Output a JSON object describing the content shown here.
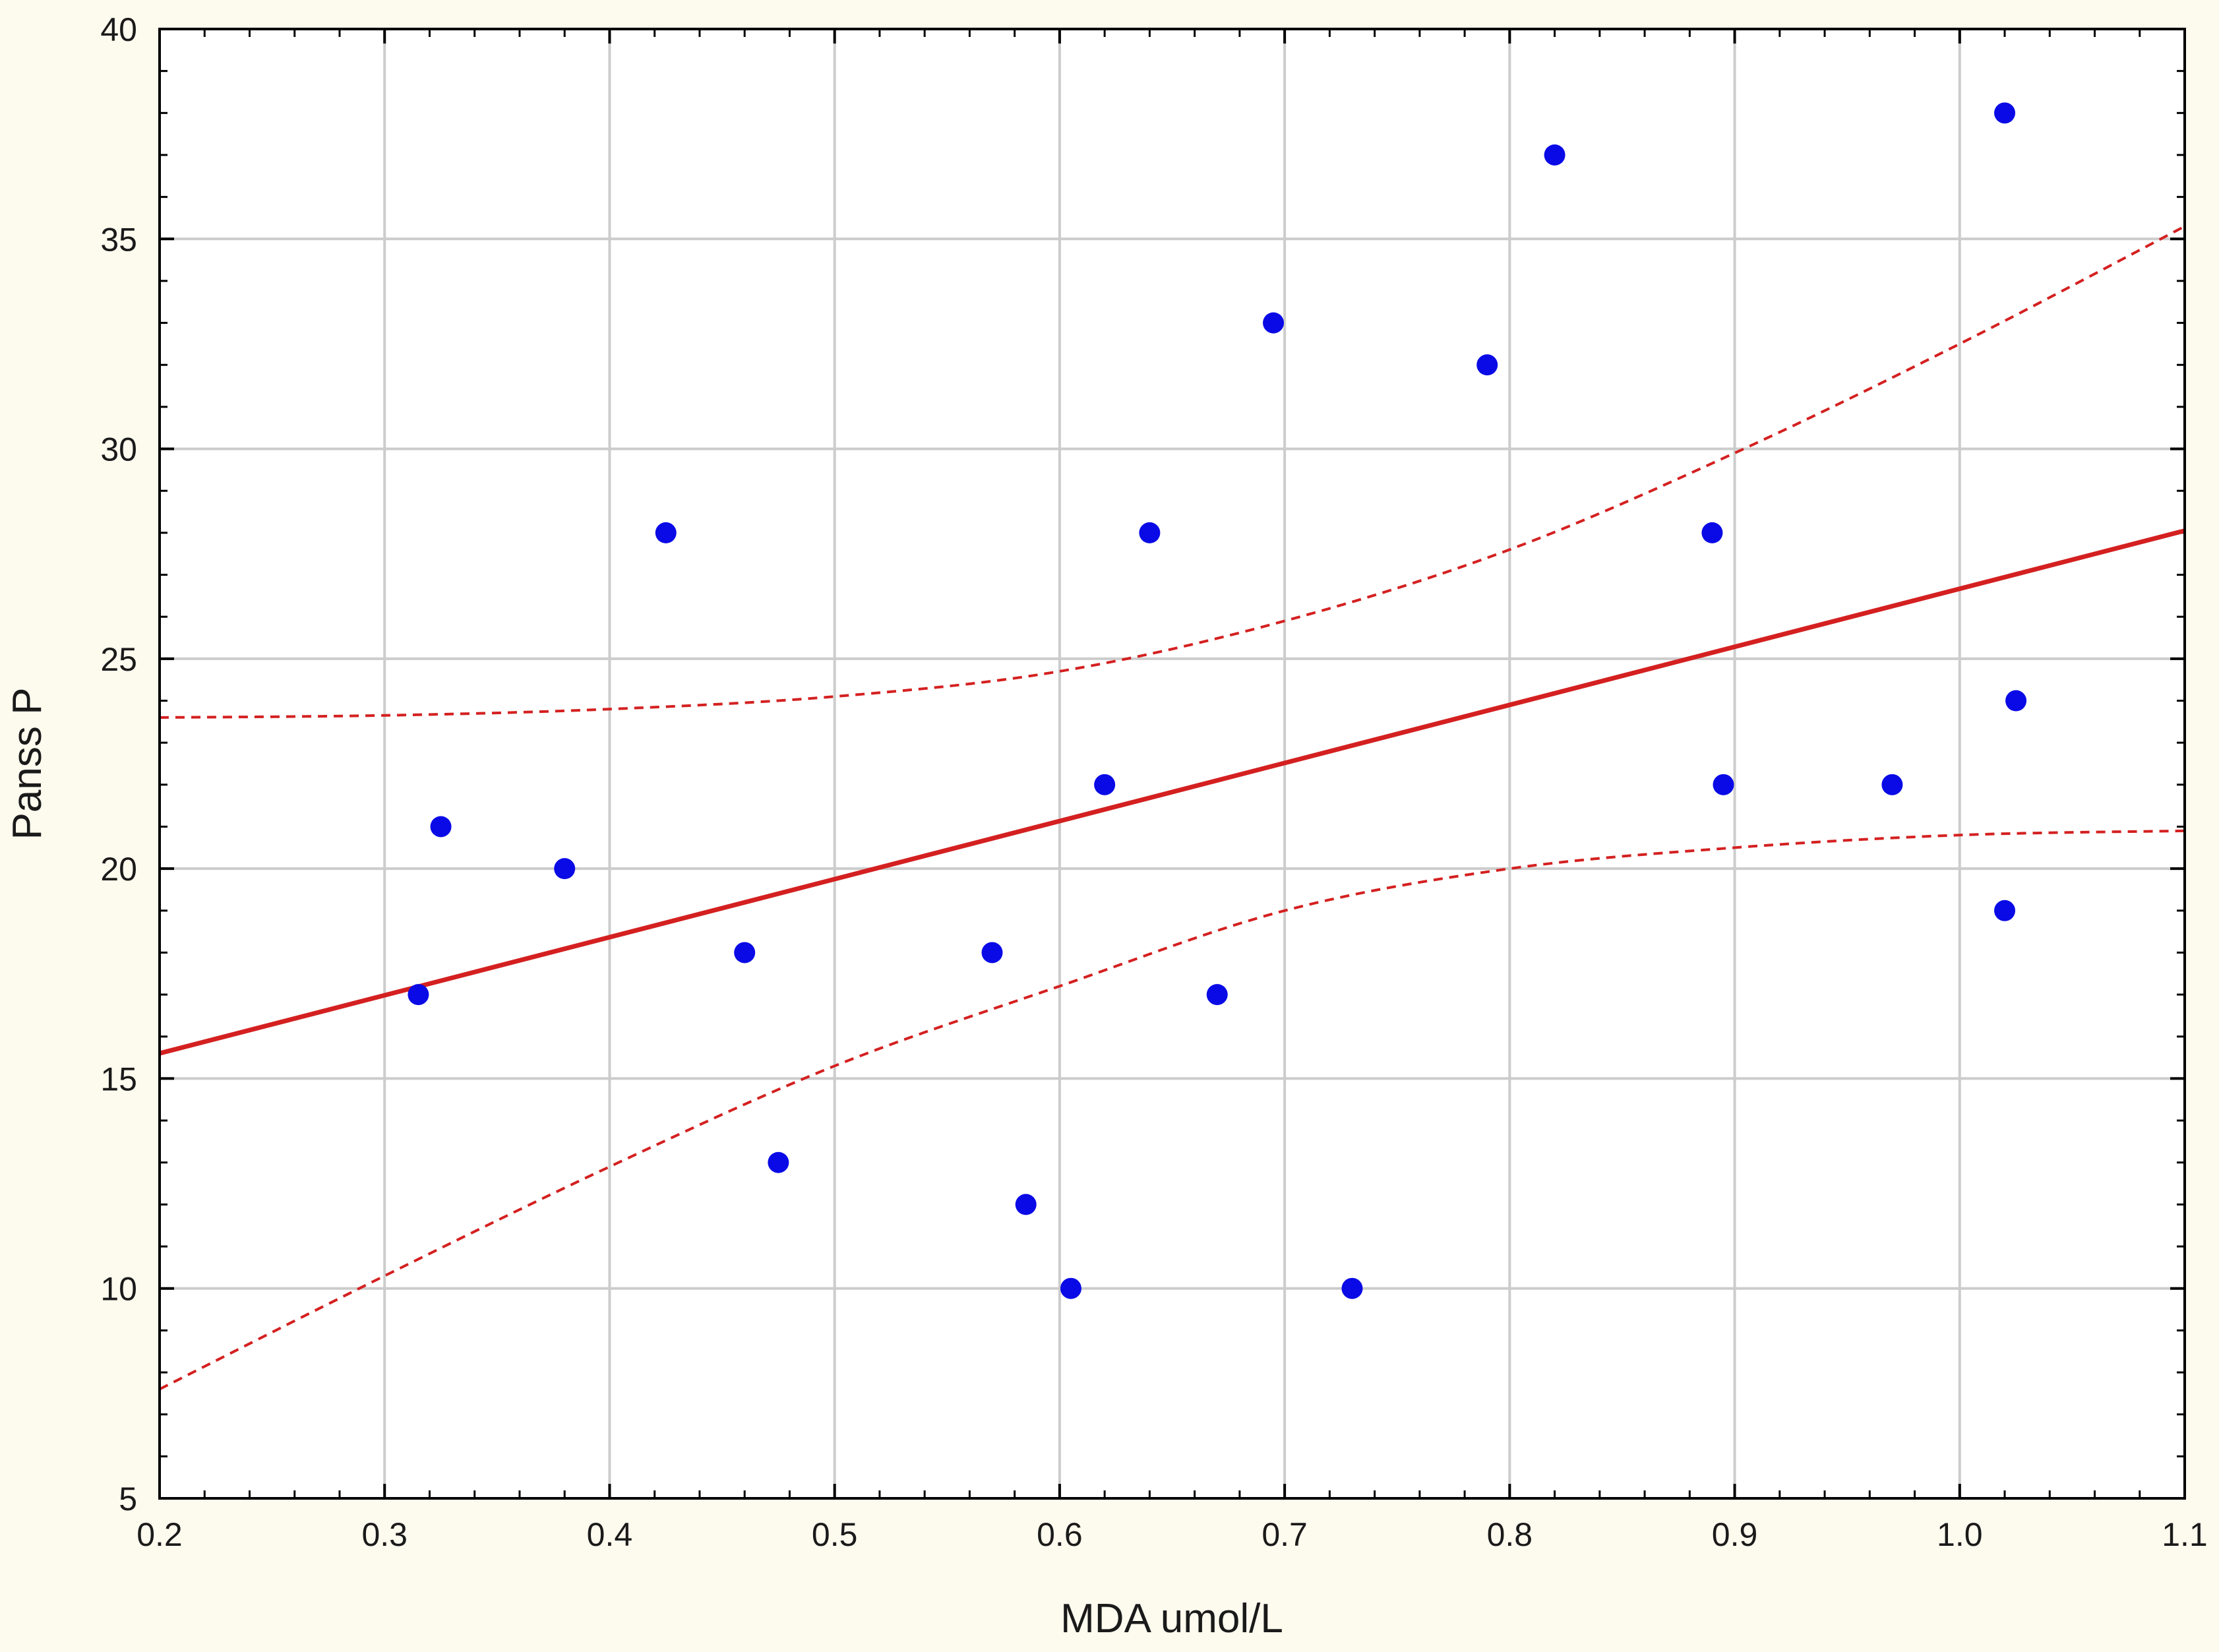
{
  "chart_data": {
    "type": "scatter",
    "title": "",
    "xlabel": "MDA  umol/L",
    "ylabel": "Panss P",
    "xlim": [
      0.2,
      1.1
    ],
    "ylim": [
      5,
      40
    ],
    "grid": true,
    "x_ticks": [
      "0.2",
      "0.3",
      "0.4",
      "0.5",
      "0.6",
      "0.7",
      "0.8",
      "0.9",
      "1.0",
      "1.1"
    ],
    "y_ticks": [
      "5",
      "10",
      "15",
      "20",
      "25",
      "30",
      "35",
      "40"
    ],
    "points": [
      {
        "x": 0.315,
        "y": 17
      },
      {
        "x": 0.325,
        "y": 21
      },
      {
        "x": 0.38,
        "y": 20
      },
      {
        "x": 0.425,
        "y": 28
      },
      {
        "x": 0.46,
        "y": 18
      },
      {
        "x": 0.475,
        "y": 13
      },
      {
        "x": 0.57,
        "y": 18
      },
      {
        "x": 0.585,
        "y": 12
      },
      {
        "x": 0.605,
        "y": 10
      },
      {
        "x": 0.62,
        "y": 22
      },
      {
        "x": 0.64,
        "y": 28
      },
      {
        "x": 0.67,
        "y": 17
      },
      {
        "x": 0.695,
        "y": 33
      },
      {
        "x": 0.73,
        "y": 10
      },
      {
        "x": 0.79,
        "y": 32
      },
      {
        "x": 0.82,
        "y": 37
      },
      {
        "x": 0.89,
        "y": 28
      },
      {
        "x": 0.895,
        "y": 22
      },
      {
        "x": 0.97,
        "y": 22
      },
      {
        "x": 1.02,
        "y": 38
      },
      {
        "x": 1.025,
        "y": 24
      },
      {
        "x": 1.02,
        "y": 19
      }
    ],
    "regression": {
      "x": [
        0.2,
        1.1
      ],
      "y": [
        15.6,
        28.05
      ]
    },
    "confidence_upper": {
      "x": [
        0.2,
        0.3,
        0.4,
        0.5,
        0.6,
        0.7,
        0.8,
        0.9,
        1.0,
        1.1
      ],
      "y": [
        23.6,
        23.65,
        23.8,
        24.1,
        24.7,
        25.9,
        27.6,
        29.9,
        32.5,
        35.3
      ]
    },
    "confidence_lower": {
      "x": [
        0.2,
        0.3,
        0.4,
        0.5,
        0.6,
        0.7,
        0.8,
        0.9,
        1.0,
        1.1
      ],
      "y": [
        7.6,
        10.3,
        12.9,
        15.3,
        17.2,
        19.0,
        20.0,
        20.5,
        20.8,
        20.9
      ]
    },
    "colors": {
      "points": "#0a0ae6",
      "regression": "#d42020",
      "grid": "#cccccc",
      "axis": "#000000",
      "background": "#fdfaee",
      "plot_background": "#ffffff"
    }
  }
}
